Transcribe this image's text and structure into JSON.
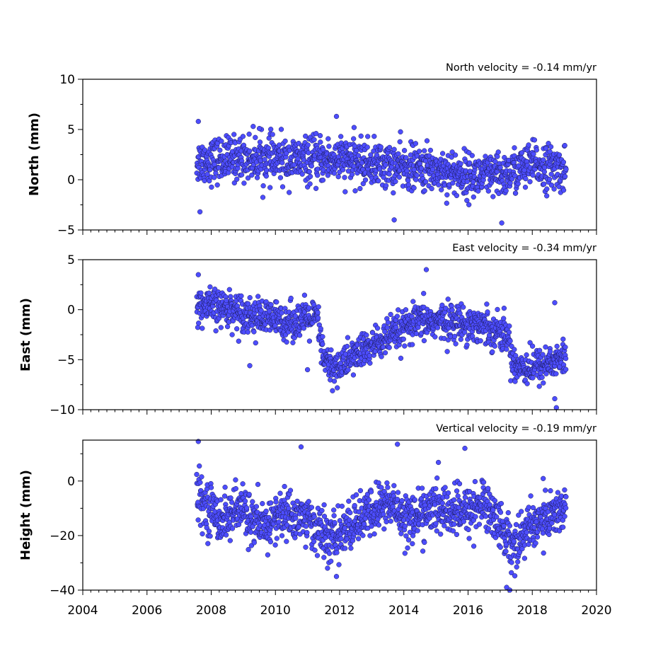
{
  "colors": {
    "marker_fill": "#4d4dff",
    "marker_edge": "#1a1a55",
    "axes": "#000000",
    "background": "#ffffff"
  },
  "chart_data": [
    {
      "type": "scatter",
      "panel": "north",
      "title": "North velocity = -0.14 mm/yr",
      "xlabel": "",
      "ylabel": "North (mm)",
      "xlim": [
        2004,
        2020
      ],
      "ylim": [
        -5,
        10
      ],
      "xticks": [
        2004,
        2006,
        2008,
        2010,
        2012,
        2014,
        2016,
        2018,
        2020
      ],
      "yticks": [
        -5,
        0,
        5,
        10
      ],
      "ytick_labels": [
        "−5",
        "0",
        "5",
        "10"
      ],
      "series": [
        {
          "x_range": [
            2007.55,
            2019.05
          ],
          "trend": [
            [
              2007.6,
              1.8
            ],
            [
              2009.0,
              2.2
            ],
            [
              2010.5,
              1.9
            ],
            [
              2012.0,
              2.0
            ],
            [
              2013.5,
              1.4
            ],
            [
              2015.0,
              1.0
            ],
            [
              2016.0,
              0.4
            ],
            [
              2017.0,
              0.3
            ],
            [
              2018.0,
              1.5
            ],
            [
              2019.0,
              1.0
            ]
          ],
          "scatter_sd": 1.1,
          "outliers": [
            [
              2007.6,
              5.8
            ],
            [
              2007.65,
              -3.2
            ],
            [
              2011.9,
              6.3
            ],
            [
              2013.7,
              -4.0
            ],
            [
              2017.05,
              -4.3
            ],
            [
              2009.5,
              5.1
            ]
          ]
        }
      ],
      "grid": false
    },
    {
      "type": "scatter",
      "panel": "east",
      "title": "East velocity = -0.34 mm/yr",
      "xlabel": "",
      "ylabel": "East (mm)",
      "xlim": [
        2004,
        2020
      ],
      "ylim": [
        -10,
        5
      ],
      "xticks": [
        2004,
        2006,
        2008,
        2010,
        2012,
        2014,
        2016,
        2018,
        2020
      ],
      "yticks": [
        -10,
        -5,
        0,
        5
      ],
      "ytick_labels": [
        "−10",
        "−5",
        "0",
        "5"
      ],
      "series": [
        {
          "x_range": [
            2007.55,
            2019.05
          ],
          "trend": [
            [
              2007.6,
              0.3
            ],
            [
              2008.5,
              0.2
            ],
            [
              2009.5,
              -0.8
            ],
            [
              2010.5,
              -1.2
            ],
            [
              2011.3,
              -0.8
            ],
            [
              2011.5,
              -5.0
            ],
            [
              2011.8,
              -6.0
            ],
            [
              2012.5,
              -4.5
            ],
            [
              2013.5,
              -2.8
            ],
            [
              2014.5,
              -1.2
            ],
            [
              2015.5,
              -1.2
            ],
            [
              2016.5,
              -1.6
            ],
            [
              2017.2,
              -2.5
            ],
            [
              2017.45,
              -5.5
            ],
            [
              2018.0,
              -5.8
            ],
            [
              2019.0,
              -4.8
            ]
          ],
          "scatter_sd": 0.9,
          "outliers": [
            [
              2007.6,
              3.5
            ],
            [
              2014.7,
              4.0
            ],
            [
              2009.2,
              -5.6
            ],
            [
              2011.0,
              -6.0
            ],
            [
              2018.7,
              0.7
            ],
            [
              2018.75,
              -9.8
            ],
            [
              2018.7,
              -8.9
            ]
          ]
        }
      ],
      "grid": false
    },
    {
      "type": "scatter",
      "panel": "height",
      "title": "Vertical velocity = -0.19 mm/yr",
      "xlabel": "",
      "ylabel": "Height (mm)",
      "xlim": [
        2004,
        2020
      ],
      "ylim": [
        -40,
        15
      ],
      "xticks": [
        2004,
        2006,
        2008,
        2010,
        2012,
        2014,
        2016,
        2018,
        2020
      ],
      "xtick_labels": [
        "2004",
        "2006",
        "2008",
        "2010",
        "2012",
        "2014",
        "2016",
        "2018",
        "2020"
      ],
      "yticks": [
        -40,
        -20,
        0
      ],
      "ytick_labels": [
        "−40",
        "−20",
        "0"
      ],
      "series": [
        {
          "x_range": [
            2007.55,
            2019.05
          ],
          "trend": [
            [
              2007.6,
              -6
            ],
            [
              2008.3,
              -14
            ],
            [
              2009.0,
              -10
            ],
            [
              2009.5,
              -18
            ],
            [
              2010.2,
              -12
            ],
            [
              2011.0,
              -14
            ],
            [
              2011.7,
              -22
            ],
            [
              2012.5,
              -15
            ],
            [
              2013.5,
              -8
            ],
            [
              2014.2,
              -14
            ],
            [
              2015.0,
              -10
            ],
            [
              2015.8,
              -12
            ],
            [
              2016.5,
              -8
            ],
            [
              2017.0,
              -16
            ],
            [
              2017.4,
              -24
            ],
            [
              2018.0,
              -16
            ],
            [
              2019.0,
              -10
            ]
          ],
          "scatter_sd": 4.5,
          "outliers": [
            [
              2007.6,
              14.5
            ],
            [
              2013.8,
              13.5
            ],
            [
              2010.8,
              12.5
            ],
            [
              2015.9,
              12.0
            ],
            [
              2017.2,
              -39
            ],
            [
              2017.3,
              -40
            ],
            [
              2011.9,
              -35
            ]
          ]
        }
      ],
      "grid": false
    }
  ]
}
